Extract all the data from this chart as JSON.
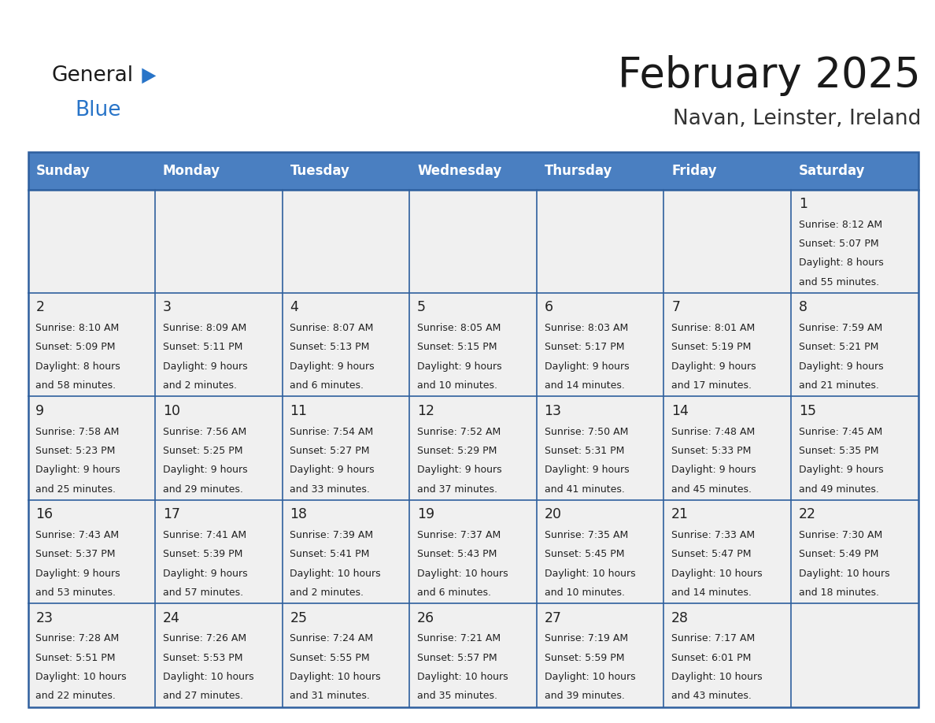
{
  "title": "February 2025",
  "subtitle": "Navan, Leinster, Ireland",
  "days_of_week": [
    "Sunday",
    "Monday",
    "Tuesday",
    "Wednesday",
    "Thursday",
    "Friday",
    "Saturday"
  ],
  "header_bg": "#4a7fc1",
  "header_text": "#FFFFFF",
  "cell_bg": "#F0F0F0",
  "border_color": "#2E5F9E",
  "text_color": "#222222",
  "title_color": "#1a1a1a",
  "subtitle_color": "#333333",
  "logo_general_color": "#1a1a1a",
  "logo_blue_color": "#2874c8",
  "logo_triangle_color": "#2874c8",
  "calendar_data": [
    [
      null,
      null,
      null,
      null,
      null,
      null,
      {
        "day": 1,
        "sunrise": "8:12 AM",
        "sunset": "5:07 PM",
        "daylight": "8 hours\nand 55 minutes."
      }
    ],
    [
      {
        "day": 2,
        "sunrise": "8:10 AM",
        "sunset": "5:09 PM",
        "daylight": "8 hours\nand 58 minutes."
      },
      {
        "day": 3,
        "sunrise": "8:09 AM",
        "sunset": "5:11 PM",
        "daylight": "9 hours\nand 2 minutes."
      },
      {
        "day": 4,
        "sunrise": "8:07 AM",
        "sunset": "5:13 PM",
        "daylight": "9 hours\nand 6 minutes."
      },
      {
        "day": 5,
        "sunrise": "8:05 AM",
        "sunset": "5:15 PM",
        "daylight": "9 hours\nand 10 minutes."
      },
      {
        "day": 6,
        "sunrise": "8:03 AM",
        "sunset": "5:17 PM",
        "daylight": "9 hours\nand 14 minutes."
      },
      {
        "day": 7,
        "sunrise": "8:01 AM",
        "sunset": "5:19 PM",
        "daylight": "9 hours\nand 17 minutes."
      },
      {
        "day": 8,
        "sunrise": "7:59 AM",
        "sunset": "5:21 PM",
        "daylight": "9 hours\nand 21 minutes."
      }
    ],
    [
      {
        "day": 9,
        "sunrise": "7:58 AM",
        "sunset": "5:23 PM",
        "daylight": "9 hours\nand 25 minutes."
      },
      {
        "day": 10,
        "sunrise": "7:56 AM",
        "sunset": "5:25 PM",
        "daylight": "9 hours\nand 29 minutes."
      },
      {
        "day": 11,
        "sunrise": "7:54 AM",
        "sunset": "5:27 PM",
        "daylight": "9 hours\nand 33 minutes."
      },
      {
        "day": 12,
        "sunrise": "7:52 AM",
        "sunset": "5:29 PM",
        "daylight": "9 hours\nand 37 minutes."
      },
      {
        "day": 13,
        "sunrise": "7:50 AM",
        "sunset": "5:31 PM",
        "daylight": "9 hours\nand 41 minutes."
      },
      {
        "day": 14,
        "sunrise": "7:48 AM",
        "sunset": "5:33 PM",
        "daylight": "9 hours\nand 45 minutes."
      },
      {
        "day": 15,
        "sunrise": "7:45 AM",
        "sunset": "5:35 PM",
        "daylight": "9 hours\nand 49 minutes."
      }
    ],
    [
      {
        "day": 16,
        "sunrise": "7:43 AM",
        "sunset": "5:37 PM",
        "daylight": "9 hours\nand 53 minutes."
      },
      {
        "day": 17,
        "sunrise": "7:41 AM",
        "sunset": "5:39 PM",
        "daylight": "9 hours\nand 57 minutes."
      },
      {
        "day": 18,
        "sunrise": "7:39 AM",
        "sunset": "5:41 PM",
        "daylight": "10 hours\nand 2 minutes."
      },
      {
        "day": 19,
        "sunrise": "7:37 AM",
        "sunset": "5:43 PM",
        "daylight": "10 hours\nand 6 minutes."
      },
      {
        "day": 20,
        "sunrise": "7:35 AM",
        "sunset": "5:45 PM",
        "daylight": "10 hours\nand 10 minutes."
      },
      {
        "day": 21,
        "sunrise": "7:33 AM",
        "sunset": "5:47 PM",
        "daylight": "10 hours\nand 14 minutes."
      },
      {
        "day": 22,
        "sunrise": "7:30 AM",
        "sunset": "5:49 PM",
        "daylight": "10 hours\nand 18 minutes."
      }
    ],
    [
      {
        "day": 23,
        "sunrise": "7:28 AM",
        "sunset": "5:51 PM",
        "daylight": "10 hours\nand 22 minutes."
      },
      {
        "day": 24,
        "sunrise": "7:26 AM",
        "sunset": "5:53 PM",
        "daylight": "10 hours\nand 27 minutes."
      },
      {
        "day": 25,
        "sunrise": "7:24 AM",
        "sunset": "5:55 PM",
        "daylight": "10 hours\nand 31 minutes."
      },
      {
        "day": 26,
        "sunrise": "7:21 AM",
        "sunset": "5:57 PM",
        "daylight": "10 hours\nand 35 minutes."
      },
      {
        "day": 27,
        "sunrise": "7:19 AM",
        "sunset": "5:59 PM",
        "daylight": "10 hours\nand 39 minutes."
      },
      {
        "day": 28,
        "sunrise": "7:17 AM",
        "sunset": "6:01 PM",
        "daylight": "10 hours\nand 43 minutes."
      },
      null
    ]
  ]
}
